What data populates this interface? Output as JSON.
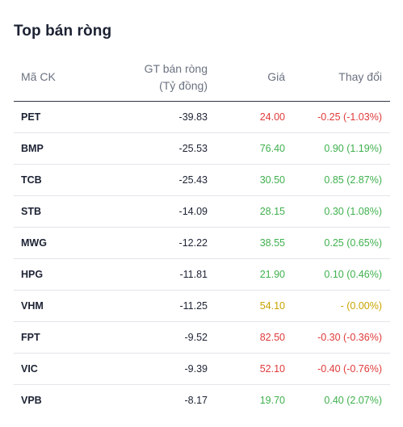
{
  "title": "Top bán ròng",
  "columns": {
    "symbol": "Mã CK",
    "value_line1": "GT bán ròng",
    "value_line2": "(Tỷ đồng)",
    "price": "Giá",
    "change": "Thay đổi"
  },
  "colors": {
    "down": "#e03a3a",
    "up": "#3fb04e",
    "flat": "#c9a400"
  },
  "rows": [
    {
      "symbol": "PET",
      "value": "-39.83",
      "price": "24.00",
      "change": "-0.25 (-1.03%)",
      "trend": "down"
    },
    {
      "symbol": "BMP",
      "value": "-25.53",
      "price": "76.40",
      "change": "0.90 (1.19%)",
      "trend": "up"
    },
    {
      "symbol": "TCB",
      "value": "-25.43",
      "price": "30.50",
      "change": "0.85 (2.87%)",
      "trend": "up"
    },
    {
      "symbol": "STB",
      "value": "-14.09",
      "price": "28.15",
      "change": "0.30 (1.08%)",
      "trend": "up"
    },
    {
      "symbol": "MWG",
      "value": "-12.22",
      "price": "38.55",
      "change": "0.25 (0.65%)",
      "trend": "up"
    },
    {
      "symbol": "HPG",
      "value": "-11.81",
      "price": "21.90",
      "change": "0.10 (0.46%)",
      "trend": "up"
    },
    {
      "symbol": "VHM",
      "value": "-11.25",
      "price": "54.10",
      "change": "- (0.00%)",
      "trend": "flat"
    },
    {
      "symbol": "FPT",
      "value": "-9.52",
      "price": "82.50",
      "change": "-0.30 (-0.36%)",
      "trend": "down"
    },
    {
      "symbol": "VIC",
      "value": "-9.39",
      "price": "52.10",
      "change": "-0.40 (-0.76%)",
      "trend": "down"
    },
    {
      "symbol": "VPB",
      "value": "-8.17",
      "price": "19.70",
      "change": "0.40 (2.07%)",
      "trend": "up"
    }
  ]
}
